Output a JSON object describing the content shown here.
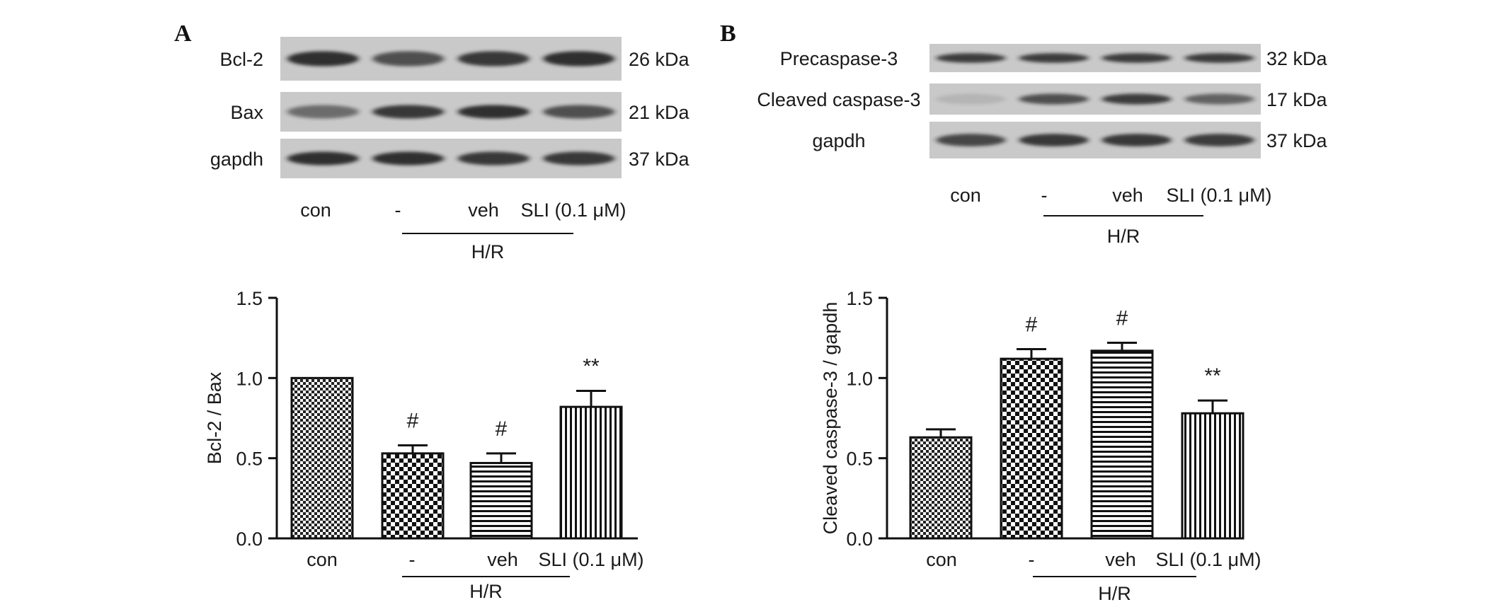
{
  "panels": [
    {
      "label": "A",
      "blot": {
        "rows": [
          {
            "name": "Bcl-2",
            "size": "26 kDa",
            "intensity": [
              0.9,
              0.7,
              0.85,
              0.9
            ]
          },
          {
            "name": "Bax",
            "size": "21 kDa",
            "intensity": [
              0.55,
              0.85,
              0.9,
              0.7
            ]
          },
          {
            "name": "gapdh",
            "size": "37 kDa",
            "intensity": [
              0.9,
              0.9,
              0.85,
              0.85
            ]
          }
        ],
        "lanes": [
          "con",
          "-",
          "veh",
          "SLI (0.1 μM)"
        ],
        "group_label": "H/R"
      },
      "chart": {
        "ylabel": "Bcl-2 / Bax",
        "group_label": "H/R"
      }
    },
    {
      "label": "B",
      "blot": {
        "rows": [
          {
            "name": "Precaspase-3",
            "size": "32 kDa",
            "intensity": [
              0.8,
              0.8,
              0.8,
              0.8
            ]
          },
          {
            "name": "Cleaved caspase-3",
            "size": "17 kDa",
            "intensity": [
              0.1,
              0.7,
              0.8,
              0.6
            ]
          },
          {
            "name": "gapdh",
            "size": "37 kDa",
            "intensity": [
              0.75,
              0.85,
              0.85,
              0.8
            ]
          }
        ],
        "lanes": [
          "con",
          "-",
          "veh",
          "SLI (0.1 μM)"
        ],
        "group_label": "H/R"
      },
      "chart": {
        "ylabel": "Cleaved caspase-3 / gapdh",
        "group_label": "H/R"
      }
    }
  ],
  "chart_data": [
    {
      "type": "bar",
      "title": "",
      "xlabel": "",
      "ylabel": "Bcl-2 / Bax",
      "categories": [
        "con",
        "-",
        "veh",
        "SLI (0.1 μM)"
      ],
      "values": [
        1.0,
        0.53,
        0.47,
        0.82
      ],
      "errors": [
        0.0,
        0.05,
        0.06,
        0.1
      ],
      "annotations": [
        "",
        "#",
        "#",
        "**"
      ],
      "patterns": [
        "fine-checker",
        "checker",
        "horizontal-lines",
        "vertical-lines"
      ],
      "ylim": [
        0.0,
        1.5
      ],
      "yticks": [
        "0.0",
        "0.5",
        "1.0",
        "1.5"
      ],
      "grid": false,
      "legend": "none"
    },
    {
      "type": "bar",
      "title": "",
      "xlabel": "",
      "ylabel": "Cleaved caspase-3 / gapdh",
      "categories": [
        "con",
        "-",
        "veh",
        "SLI (0.1 μM)"
      ],
      "values": [
        0.63,
        1.12,
        1.17,
        0.78
      ],
      "errors": [
        0.05,
        0.06,
        0.05,
        0.08
      ],
      "annotations": [
        "",
        "#",
        "#",
        "**"
      ],
      "patterns": [
        "fine-checker",
        "checker",
        "horizontal-lines",
        "vertical-lines"
      ],
      "ylim": [
        0.0,
        1.5
      ],
      "yticks": [
        "0.0",
        "0.5",
        "1.0",
        "1.5"
      ],
      "grid": false,
      "legend": "none"
    }
  ]
}
